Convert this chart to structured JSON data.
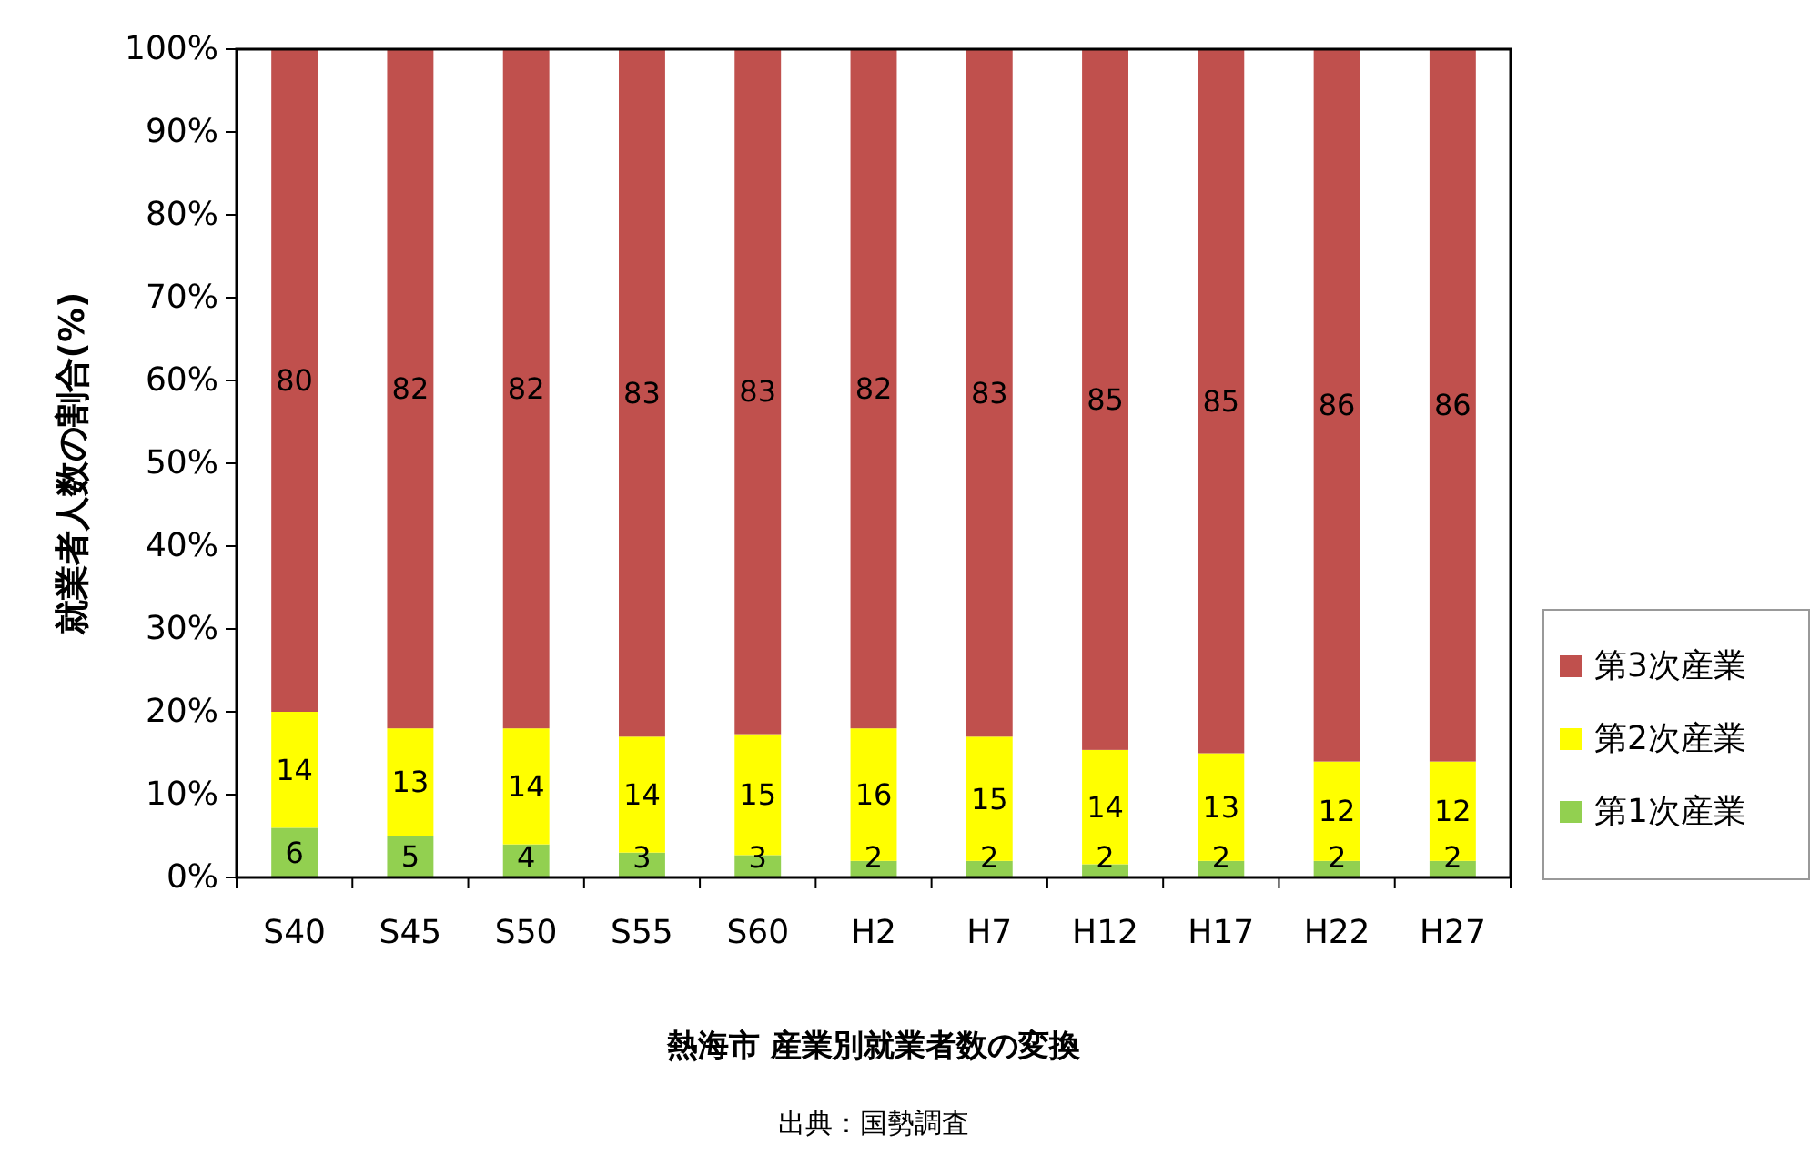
{
  "chart_data": {
    "type": "bar",
    "stacked": true,
    "title": "熱海市 産業別就業者数の変換",
    "ylabel": "就業者人数の割合(%)",
    "annotations": [
      "出典：国勢調査"
    ],
    "categories": [
      "S40",
      "S45",
      "S50",
      "S55",
      "S60",
      "H2",
      "H7",
      "H12",
      "H17",
      "H22",
      "H27"
    ],
    "series": [
      {
        "name": "第1次産業",
        "color": "#92d050",
        "values": [
          6,
          5,
          4,
          3,
          2.7,
          2,
          2,
          1.6,
          2,
          2,
          2
        ],
        "value_labels": [
          "6",
          "5",
          "4",
          "3",
          "3",
          "2",
          "2",
          "2",
          "2",
          "2",
          "2"
        ]
      },
      {
        "name": "第2次産業",
        "color": "#ffff00",
        "values": [
          14,
          13,
          14,
          14,
          14.6,
          16,
          15,
          13.8,
          13,
          12,
          12
        ],
        "value_labels": [
          "14",
          "13",
          "14",
          "14",
          "15",
          "16",
          "15",
          "14",
          "13",
          "12",
          "12"
        ]
      },
      {
        "name": "第3次産業",
        "color": "#c0504d",
        "values": [
          80,
          82,
          82,
          83,
          82.7,
          82,
          83,
          84.6,
          85,
          86,
          86
        ],
        "value_labels": [
          "80",
          "82",
          "82",
          "83",
          "83",
          "82",
          "83",
          "85",
          "85",
          "86",
          "86"
        ]
      }
    ],
    "ylim": [
      0,
      100
    ],
    "yticks": [
      {
        "value": 0,
        "label": "0%"
      },
      {
        "value": 10,
        "label": "10%"
      },
      {
        "value": 20,
        "label": "20%"
      },
      {
        "value": 30,
        "label": "30%"
      },
      {
        "value": 40,
        "label": "40%"
      },
      {
        "value": 50,
        "label": "50%"
      },
      {
        "value": 60,
        "label": "60%"
      },
      {
        "value": 70,
        "label": "70%"
      },
      {
        "value": 80,
        "label": "80%"
      },
      {
        "value": 90,
        "label": "90%"
      },
      {
        "value": 100,
        "label": "100%"
      }
    ],
    "legend": "right"
  }
}
